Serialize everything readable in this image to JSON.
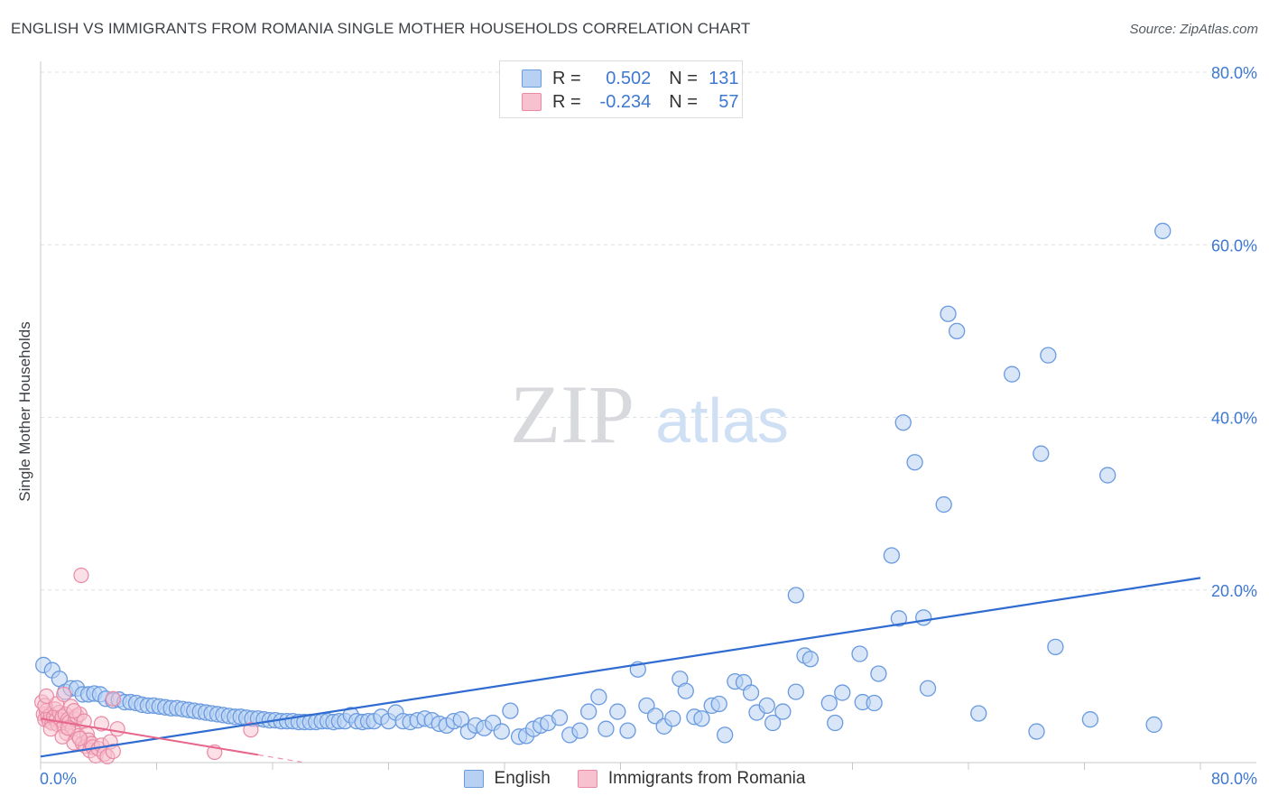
{
  "title": "ENGLISH VS IMMIGRANTS FROM ROMANIA SINGLE MOTHER HOUSEHOLDS CORRELATION CHART",
  "source": "Source: ZipAtlas.com",
  "watermark": {
    "zip": "ZIP",
    "atlas": "atlas"
  },
  "legend": [
    {
      "r_label": "R =",
      "r_value": "0.502",
      "n_label": "N =",
      "n_value": "131",
      "fill": "#b8d1f3",
      "stroke": "#6a9ae0"
    },
    {
      "r_label": "R =",
      "r_value": "-0.234",
      "n_label": "N =",
      "n_value": "57",
      "fill": "#f8c1d0",
      "stroke": "#e98aa5"
    }
  ],
  "bottom_legend": [
    "English",
    "Immigrants from Romania"
  ],
  "chart_data": {
    "type": "scatter",
    "title": "ENGLISH VS IMMIGRANTS FROM ROMANIA SINGLE MOTHER HOUSEHOLDS CORRELATION CHART",
    "xlabel": "",
    "ylabel": "Single Mother Households",
    "xlim": [
      0,
      80
    ],
    "ylim": [
      0,
      80
    ],
    "x_tick_labels": [
      {
        "value": 0,
        "label": "0.0%"
      },
      {
        "value": 80,
        "label": "80.0%"
      }
    ],
    "y_tick_labels": [
      {
        "value": 20,
        "label": "20.0%"
      },
      {
        "value": 40,
        "label": "40.0%"
      },
      {
        "value": 60,
        "label": "60.0%"
      },
      {
        "value": 80,
        "label": "80.0%"
      }
    ],
    "grid": true,
    "legend_position": "top-center",
    "series": [
      {
        "name": "English",
        "color": "#6a9ae0",
        "fill": "#b8d1f3",
        "trend": {
          "x": [
            0,
            80
          ],
          "y": [
            0.7,
            21.4
          ],
          "color": "#2f6bd0"
        },
        "points": [
          [
            0.2,
            11.3
          ],
          [
            0.8,
            10.7
          ],
          [
            1.3,
            9.7
          ],
          [
            1.7,
            8.2
          ],
          [
            2.1,
            8.6
          ],
          [
            2.5,
            8.6
          ],
          [
            2.9,
            7.9
          ],
          [
            3.3,
            7.9
          ],
          [
            3.7,
            8.0
          ],
          [
            4.1,
            7.9
          ],
          [
            4.5,
            7.4
          ],
          [
            5.0,
            7.2
          ],
          [
            5.4,
            7.3
          ],
          [
            5.8,
            7.0
          ],
          [
            6.2,
            7.0
          ],
          [
            6.6,
            6.9
          ],
          [
            7.0,
            6.7
          ],
          [
            7.4,
            6.6
          ],
          [
            7.8,
            6.6
          ],
          [
            8.2,
            6.5
          ],
          [
            8.6,
            6.4
          ],
          [
            9.0,
            6.3
          ],
          [
            9.4,
            6.3
          ],
          [
            9.8,
            6.2
          ],
          [
            10.2,
            6.1
          ],
          [
            10.6,
            6.0
          ],
          [
            11.0,
            5.9
          ],
          [
            11.4,
            5.8
          ],
          [
            11.8,
            5.7
          ],
          [
            12.2,
            5.6
          ],
          [
            12.6,
            5.5
          ],
          [
            13.0,
            5.4
          ],
          [
            13.4,
            5.3
          ],
          [
            13.8,
            5.3
          ],
          [
            14.2,
            5.2
          ],
          [
            14.6,
            5.1
          ],
          [
            15.0,
            5.1
          ],
          [
            15.4,
            5.0
          ],
          [
            15.8,
            4.9
          ],
          [
            16.2,
            4.9
          ],
          [
            16.6,
            4.8
          ],
          [
            17.0,
            4.8
          ],
          [
            17.4,
            4.8
          ],
          [
            17.8,
            4.7
          ],
          [
            18.2,
            4.7
          ],
          [
            18.6,
            4.7
          ],
          [
            19.0,
            4.7
          ],
          [
            19.4,
            4.8
          ],
          [
            19.8,
            4.8
          ],
          [
            20.2,
            4.7
          ],
          [
            20.6,
            4.8
          ],
          [
            21.0,
            4.8
          ],
          [
            21.4,
            5.5
          ],
          [
            21.8,
            4.8
          ],
          [
            22.2,
            4.7
          ],
          [
            22.6,
            4.8
          ],
          [
            23.0,
            4.8
          ],
          [
            23.5,
            5.3
          ],
          [
            24.0,
            4.8
          ],
          [
            24.5,
            5.8
          ],
          [
            25.0,
            4.8
          ],
          [
            25.5,
            4.7
          ],
          [
            26.0,
            4.9
          ],
          [
            26.5,
            5.1
          ],
          [
            27.0,
            4.9
          ],
          [
            27.5,
            4.5
          ],
          [
            28.0,
            4.3
          ],
          [
            28.5,
            4.8
          ],
          [
            29.0,
            5.0
          ],
          [
            29.5,
            3.6
          ],
          [
            30.0,
            4.3
          ],
          [
            30.6,
            4.0
          ],
          [
            31.2,
            4.6
          ],
          [
            31.8,
            3.6
          ],
          [
            32.4,
            6.0
          ],
          [
            33.0,
            3.0
          ],
          [
            33.5,
            3.1
          ],
          [
            34.0,
            3.9
          ],
          [
            34.5,
            4.3
          ],
          [
            35.0,
            4.6
          ],
          [
            35.8,
            5.2
          ],
          [
            36.5,
            3.2
          ],
          [
            37.2,
            3.7
          ],
          [
            37.8,
            5.9
          ],
          [
            38.5,
            7.6
          ],
          [
            39.0,
            3.9
          ],
          [
            39.8,
            5.9
          ],
          [
            40.5,
            3.7
          ],
          [
            41.2,
            10.8
          ],
          [
            41.8,
            6.6
          ],
          [
            42.4,
            5.4
          ],
          [
            43.0,
            4.2
          ],
          [
            43.6,
            5.1
          ],
          [
            44.1,
            9.7
          ],
          [
            44.5,
            8.3
          ],
          [
            45.1,
            5.3
          ],
          [
            45.6,
            5.1
          ],
          [
            46.3,
            6.6
          ],
          [
            46.8,
            6.8
          ],
          [
            47.2,
            3.2
          ],
          [
            47.9,
            9.4
          ],
          [
            48.5,
            9.3
          ],
          [
            49.0,
            8.1
          ],
          [
            49.4,
            5.8
          ],
          [
            50.1,
            6.6
          ],
          [
            50.5,
            4.6
          ],
          [
            51.2,
            5.9
          ],
          [
            52.1,
            8.2
          ],
          [
            52.1,
            19.4
          ],
          [
            52.7,
            12.4
          ],
          [
            53.1,
            12.0
          ],
          [
            54.4,
            6.9
          ],
          [
            54.8,
            4.6
          ],
          [
            55.3,
            8.1
          ],
          [
            56.5,
            12.6
          ],
          [
            56.7,
            7.0
          ],
          [
            57.5,
            6.9
          ],
          [
            57.8,
            10.3
          ],
          [
            58.7,
            24.0
          ],
          [
            59.2,
            16.7
          ],
          [
            59.5,
            39.4
          ],
          [
            60.3,
            34.8
          ],
          [
            60.9,
            16.8
          ],
          [
            61.2,
            8.6
          ],
          [
            62.3,
            29.9
          ],
          [
            62.6,
            52.0
          ],
          [
            63.2,
            50.0
          ],
          [
            64.7,
            5.7
          ],
          [
            67.0,
            45.0
          ],
          [
            68.7,
            3.6
          ],
          [
            69.0,
            35.8
          ],
          [
            69.5,
            47.2
          ],
          [
            70.0,
            13.4
          ],
          [
            72.4,
            5.0
          ],
          [
            73.6,
            33.3
          ],
          [
            76.8,
            4.4
          ],
          [
            77.4,
            61.6
          ]
        ]
      },
      {
        "name": "Immigrants from Romania",
        "color": "#e98aa5",
        "fill": "#f8c1d0",
        "trend": {
          "x": [
            0,
            15
          ],
          "y": [
            5.1,
            0.9
          ],
          "color": "#e7658b",
          "dash_extension_to": 18
        },
        "points": [
          [
            0.1,
            7.0
          ],
          [
            0.2,
            5.6
          ],
          [
            0.3,
            5.0
          ],
          [
            0.4,
            6.0
          ],
          [
            0.5,
            5.3
          ],
          [
            0.6,
            4.8
          ],
          [
            0.7,
            5.5
          ],
          [
            0.8,
            4.6
          ],
          [
            0.9,
            5.2
          ],
          [
            1.0,
            6.2
          ],
          [
            1.1,
            5.0
          ],
          [
            1.2,
            4.4
          ],
          [
            1.3,
            5.8
          ],
          [
            1.4,
            4.9
          ],
          [
            1.5,
            5.3
          ],
          [
            1.6,
            4.2
          ],
          [
            1.7,
            5.6
          ],
          [
            1.8,
            3.4
          ],
          [
            1.9,
            5.0
          ],
          [
            2.0,
            4.7
          ],
          [
            2.1,
            6.5
          ],
          [
            2.2,
            3.9
          ],
          [
            2.3,
            2.3
          ],
          [
            2.4,
            5.0
          ],
          [
            2.5,
            5.4
          ],
          [
            2.6,
            3.1
          ],
          [
            2.7,
            5.6
          ],
          [
            2.8,
            21.7
          ],
          [
            2.9,
            2.2
          ],
          [
            3.0,
            4.8
          ],
          [
            3.1,
            1.9
          ],
          [
            3.2,
            3.3
          ],
          [
            3.3,
            2.6
          ],
          [
            3.4,
            1.4
          ],
          [
            3.5,
            2.2
          ],
          [
            3.6,
            1.8
          ],
          [
            3.8,
            0.8
          ],
          [
            4.0,
            1.6
          ],
          [
            4.2,
            2.0
          ],
          [
            4.4,
            1.0
          ],
          [
            4.6,
            0.7
          ],
          [
            4.8,
            2.4
          ],
          [
            5.0,
            1.3
          ],
          [
            5.3,
            3.9
          ],
          [
            0.3,
            6.6
          ],
          [
            0.7,
            3.9
          ],
          [
            1.1,
            6.8
          ],
          [
            1.5,
            3.0
          ],
          [
            1.9,
            4.0
          ],
          [
            2.3,
            6.0
          ],
          [
            2.7,
            2.8
          ],
          [
            0.4,
            7.7
          ],
          [
            1.6,
            7.9
          ],
          [
            5.0,
            7.4
          ],
          [
            12.0,
            1.2
          ],
          [
            14.5,
            3.8
          ],
          [
            4.2,
            4.5
          ]
        ]
      }
    ]
  }
}
